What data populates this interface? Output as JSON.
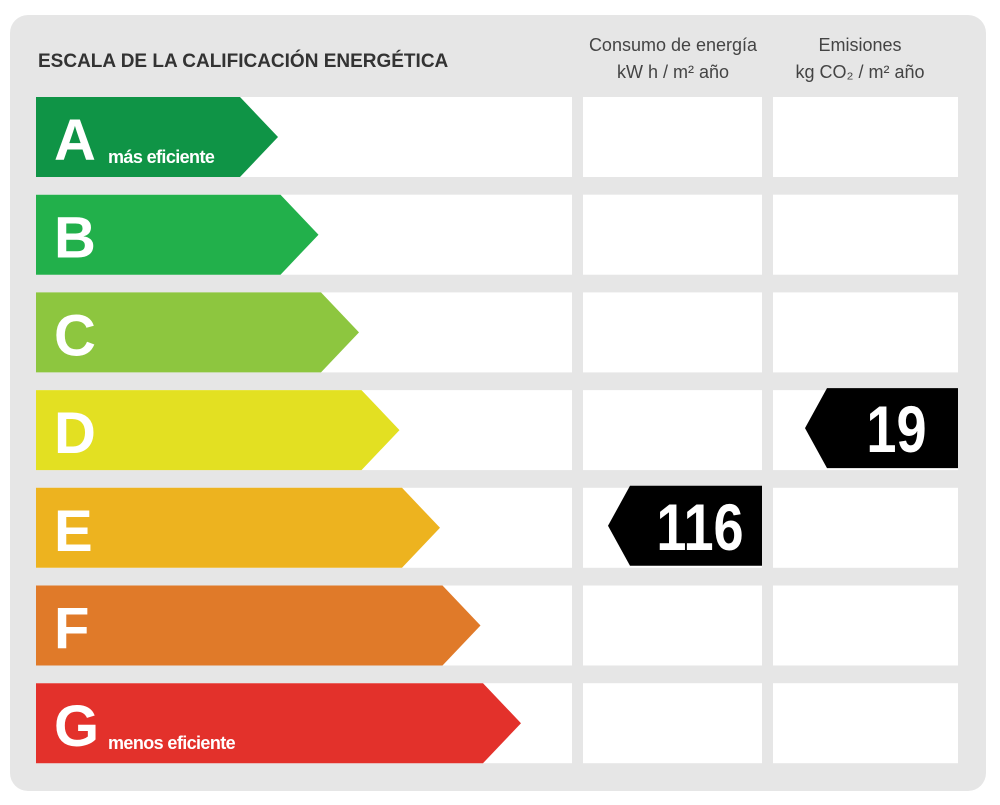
{
  "header": {
    "title": "ESCALA DE LA CALIFICACIÓN ENERGÉTICA",
    "consumption": [
      "Consumo de energía",
      "kW h  / m² año"
    ],
    "emissions": [
      "Emisiones",
      "kg CO₂  / m² año"
    ]
  },
  "rows": [
    {
      "letter": "A",
      "note": "más eficiente",
      "color": "#0f9446"
    },
    {
      "letter": "B",
      "color": "#22b04b"
    },
    {
      "letter": "C",
      "color": "#8dc63f"
    },
    {
      "letter": "D",
      "color": "#e3e022",
      "emissions": 19
    },
    {
      "letter": "E",
      "color": "#edb31f",
      "consumption": 116
    },
    {
      "letter": "F",
      "color": "#e07a29"
    },
    {
      "letter": "G",
      "note": "menos eficiente",
      "color": "#e3312b"
    }
  ]
}
